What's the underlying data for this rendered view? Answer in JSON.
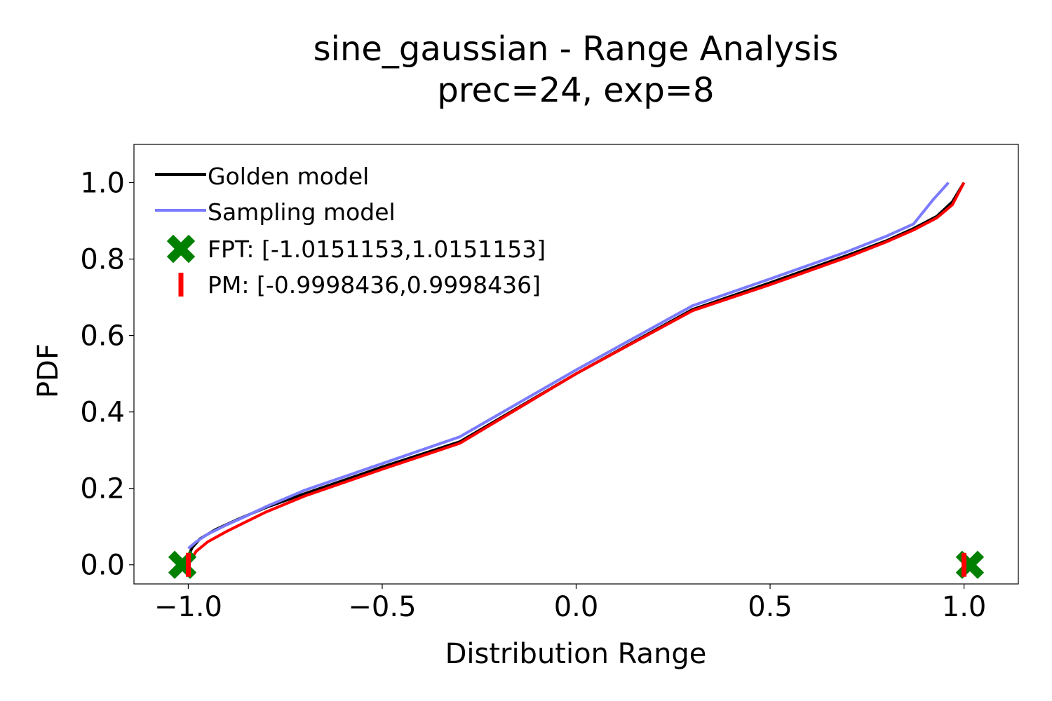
{
  "chart_data": {
    "type": "line",
    "title": "sine_gaussian - Range Analysis",
    "subtitle": "prec=24, exp=8",
    "xlabel": "Distribution Range",
    "ylabel": "PDF",
    "xlim": [
      -1.14,
      1.14
    ],
    "ylim": [
      -0.05,
      1.1
    ],
    "x_ticks": [
      -1.0,
      -0.5,
      0.0,
      0.5,
      1.0
    ],
    "x_tick_labels": [
      "−1.0",
      "−0.5",
      "0.0",
      "0.5",
      "1.0"
    ],
    "y_ticks": [
      0.0,
      0.2,
      0.4,
      0.6,
      0.8,
      1.0
    ],
    "y_tick_labels": [
      "0.0",
      "0.2",
      "0.4",
      "0.6",
      "0.8",
      "1.0"
    ],
    "grid": false,
    "legend_position": "top-left",
    "series": [
      {
        "name": "Golden model",
        "color": "#000000",
        "x": [
          -0.9998,
          -0.99,
          -0.97,
          -0.93,
          -0.87,
          -0.8,
          -0.7,
          -0.5,
          -0.3,
          0.0,
          0.3,
          0.5,
          0.7,
          0.8,
          0.87,
          0.93,
          0.97,
          0.9998
        ],
        "y": [
          0.023,
          0.045,
          0.068,
          0.092,
          0.12,
          0.15,
          0.186,
          0.256,
          0.322,
          0.5,
          0.668,
          0.738,
          0.81,
          0.848,
          0.88,
          0.912,
          0.95,
          1.0
        ]
      },
      {
        "name": "Sampling model",
        "color": "#7b7bff",
        "x": [
          -0.9998,
          -0.98,
          -0.95,
          -0.9,
          -0.85,
          -0.8,
          -0.7,
          -0.5,
          -0.3,
          0.0,
          0.3,
          0.5,
          0.7,
          0.8,
          0.87,
          0.92,
          0.96
        ],
        "y": [
          0.043,
          0.06,
          0.08,
          0.105,
          0.128,
          0.152,
          0.195,
          0.265,
          0.335,
          0.51,
          0.678,
          0.748,
          0.82,
          0.86,
          0.892,
          0.955,
          1.0
        ]
      },
      {
        "name": "",
        "color": "#ff0000",
        "x": [
          -0.9998,
          -0.98,
          -0.95,
          -0.9,
          -0.85,
          -0.8,
          -0.7,
          -0.5,
          -0.3,
          0.0,
          0.3,
          0.5,
          0.7,
          0.8,
          0.87,
          0.93,
          0.97,
          0.9998
        ],
        "y": [
          0.0,
          0.035,
          0.06,
          0.088,
          0.113,
          0.138,
          0.18,
          0.25,
          0.318,
          0.5,
          0.665,
          0.733,
          0.805,
          0.845,
          0.876,
          0.908,
          0.942,
          1.0
        ]
      }
    ],
    "markers": [
      {
        "name": "FPT: [-1.0151153,1.0151153]",
        "symbol": "x-thick",
        "color": "#008000",
        "x": [
          -1.0151153,
          1.0151153
        ],
        "y": [
          0.0,
          0.0
        ]
      },
      {
        "name": "PM: [-0.9998436,0.9998436]",
        "symbol": "vertical-bar",
        "color": "#ff0000",
        "x": [
          -0.9998436,
          0.9998436
        ],
        "y": [
          0.0,
          0.0
        ]
      }
    ]
  }
}
